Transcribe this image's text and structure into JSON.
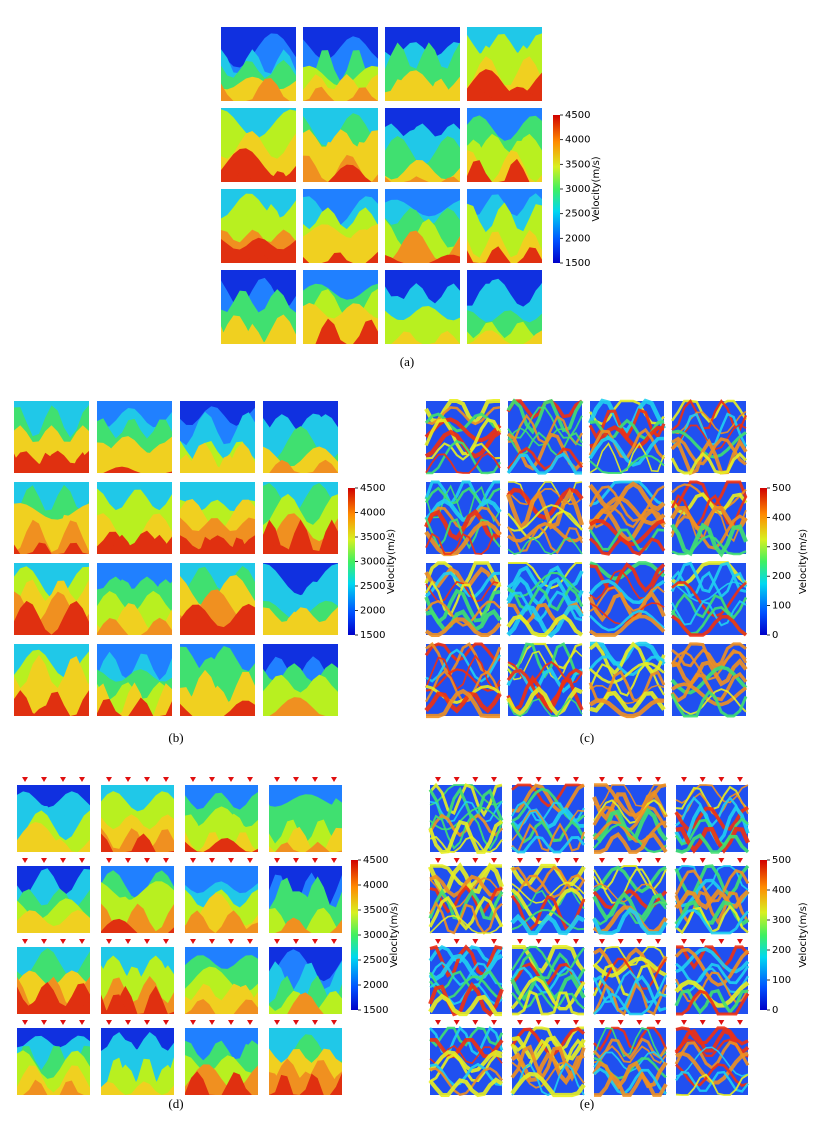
{
  "panels": [
    {
      "caption": "(a)",
      "colorbar": {
        "label": "Velocity(m/s)",
        "ticks": [
          4500,
          4000,
          3500,
          3000,
          2500,
          2000,
          1500
        ]
      }
    },
    {
      "caption": "(b)",
      "colorbar": {
        "label": "Velocity(m/s)",
        "ticks": [
          4500,
          4000,
          3500,
          3000,
          2500,
          2000,
          1500
        ]
      }
    },
    {
      "caption": "(c)",
      "colorbar": {
        "label": "Velocity(m/s)",
        "ticks": [
          500,
          400,
          300,
          200,
          100,
          0
        ]
      }
    },
    {
      "caption": "(d)",
      "colorbar": {
        "label": "Velocity(m/s)",
        "ticks": [
          4500,
          4000,
          3500,
          3000,
          2500,
          2000,
          1500
        ]
      }
    },
    {
      "caption": "(e)",
      "colorbar": {
        "label": "Velocity(m/s)",
        "ticks": [
          500,
          400,
          300,
          200,
          100,
          0
        ]
      }
    }
  ]
}
